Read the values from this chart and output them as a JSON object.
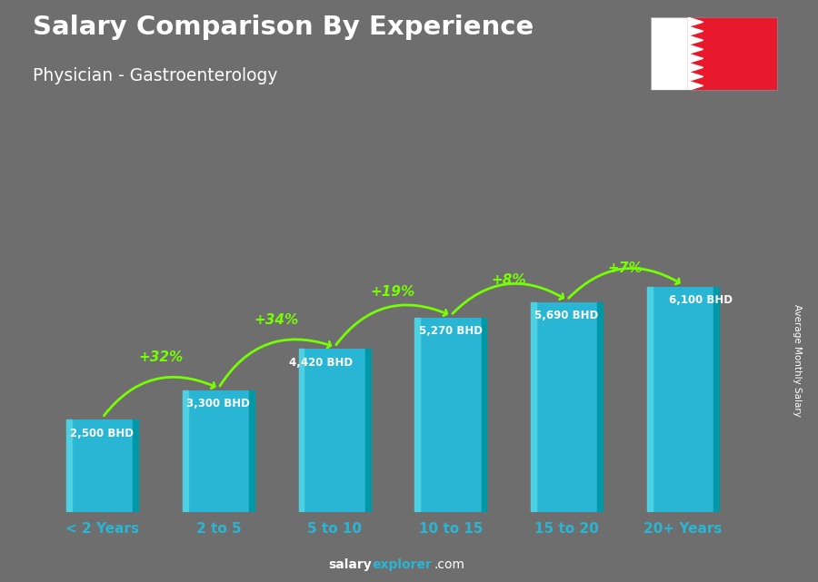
{
  "title": "Salary Comparison By Experience",
  "subtitle": "Physician - Gastroenterology",
  "categories": [
    "< 2 Years",
    "2 to 5",
    "5 to 10",
    "10 to 15",
    "15 to 20",
    "20+ Years"
  ],
  "values": [
    2500,
    3300,
    4420,
    5270,
    5690,
    6100
  ],
  "bar_color": "#29b6d4",
  "bar_color_light": "#4dd0e1",
  "bar_color_dark": "#0097a7",
  "pct_changes": [
    "+32%",
    "+34%",
    "+19%",
    "+8%",
    "+7%"
  ],
  "salary_labels": [
    "2,500 BHD",
    "3,300 BHD",
    "4,420 BHD",
    "5,270 BHD",
    "5,690 BHD",
    "6,100 BHD"
  ],
  "arrow_color": "#76ff03",
  "bg_color": "#6e6e6e",
  "title_color": "#ffffff",
  "xlabel_color": "#29b6d4",
  "ylabel": "Average Monthly Salary",
  "ylim": [
    0,
    8200
  ],
  "flag_red": "#e8192c",
  "footer_salary_color": "#ffffff",
  "footer_explorer_color": "#29b6d4",
  "footer_com_color": "#ffffff"
}
